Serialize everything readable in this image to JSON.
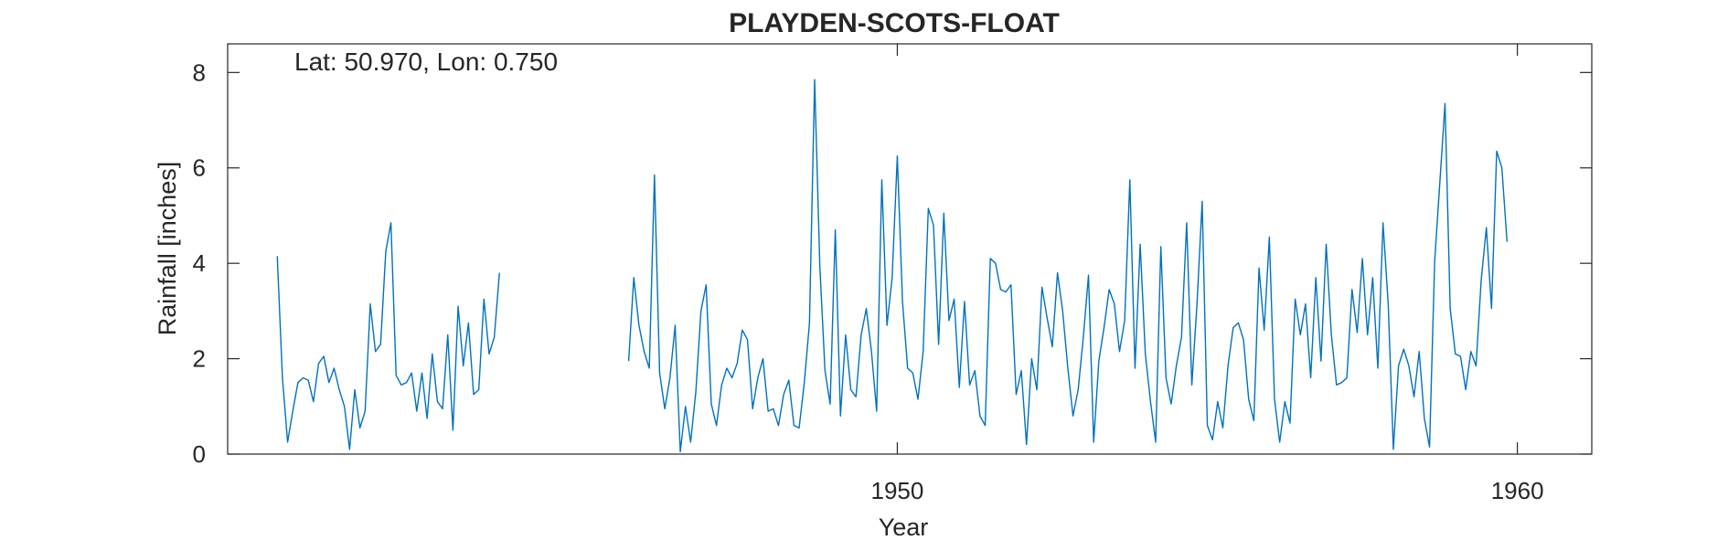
{
  "chart_data": {
    "type": "line",
    "title": "PLAYDEN-SCOTS-FLOAT",
    "annotation": "Lat: 50.970, Lon: 0.750",
    "xlabel": "Year",
    "ylabel": "Rainfall [inches]",
    "xlim": [
      1939.2,
      1961.2
    ],
    "ylim": [
      0,
      8.6
    ],
    "xticks": [
      1950,
      1960
    ],
    "xtick_labels": [
      "1950",
      "1960"
    ],
    "yticks": [
      0,
      2,
      4,
      6,
      8
    ],
    "ytick_labels": [
      "0",
      "2",
      "4",
      "6",
      "8"
    ],
    "grid": false,
    "legend": "none",
    "series": [
      {
        "color": "#0072BD",
        "segments": [
          {
            "x_start": 1940.0,
            "x_step": 0.0833333,
            "values": [
              4.15,
              1.6,
              0.25,
              0.9,
              1.5,
              1.6,
              1.55,
              1.1,
              1.9,
              2.05,
              1.5,
              1.8,
              1.35,
              1.0,
              0.1,
              1.35,
              0.55,
              0.9,
              3.15,
              2.15,
              2.3,
              4.25,
              4.85,
              1.65,
              1.45,
              1.5,
              1.7,
              0.9,
              1.7,
              0.75,
              2.1,
              1.1,
              0.95,
              2.5,
              0.5,
              3.1,
              1.85,
              2.75,
              1.25,
              1.35,
              3.25,
              2.1,
              2.45,
              3.8
            ]
          },
          {
            "x_start": 1945.6667,
            "x_step": 0.0833333,
            "values": [
              1.95,
              3.7,
              2.7,
              2.15,
              1.8,
              5.85,
              1.7,
              0.95,
              1.6,
              2.7,
              0.05,
              1.0,
              0.25,
              1.3,
              3.0,
              3.55,
              1.05,
              0.6,
              1.45,
              1.8,
              1.6,
              1.9,
              2.6,
              2.4,
              0.95,
              1.6,
              2.0,
              0.9,
              0.95,
              0.6,
              1.25,
              1.55,
              0.6,
              0.55,
              1.5,
              2.75,
              7.85,
              3.95,
              1.75,
              1.05,
              4.7,
              0.8,
              2.5,
              1.35,
              1.2,
              2.5,
              3.05,
              2.15,
              0.9,
              5.75,
              2.7,
              3.7,
              6.25,
              3.2,
              1.8,
              1.7,
              1.15,
              2.15,
              5.15,
              4.8,
              2.3,
              5.05,
              2.8,
              3.25,
              1.4,
              3.2,
              1.45,
              1.75,
              0.8,
              0.6,
              4.1,
              4.0,
              3.45,
              3.4,
              3.55,
              1.25,
              1.75,
              0.2,
              2.0,
              1.35,
              3.5,
              2.85,
              2.25,
              3.8,
              3.0,
              1.8,
              0.8,
              1.35,
              2.45,
              3.75,
              0.25,
              1.95,
              2.65,
              3.45,
              3.15,
              2.15,
              2.8,
              5.75,
              1.8,
              4.4,
              2.1,
              1.1,
              0.25,
              4.35,
              1.6,
              1.05,
              1.85,
              2.45,
              4.85,
              1.45,
              3.15,
              5.3,
              0.6,
              0.3,
              1.1,
              0.55,
              1.85,
              2.65,
              2.75,
              2.4,
              1.15,
              0.7,
              3.9,
              2.6,
              4.55,
              1.15,
              0.25,
              1.1,
              0.65,
              3.25,
              2.5,
              3.15,
              1.6,
              3.7,
              1.95,
              4.4,
              2.5,
              1.45,
              1.5,
              1.6,
              3.45,
              2.55,
              4.1,
              2.5,
              3.7,
              1.8,
              4.85,
              3.15,
              0.1,
              1.85,
              2.2,
              1.85,
              1.2,
              2.15,
              0.75,
              0.15,
              4.05,
              5.7,
              7.35,
              3.05,
              2.1,
              2.05,
              1.35,
              2.15,
              1.85,
              3.65,
              4.75,
              3.05,
              6.35,
              6.0,
              4.45
            ]
          }
        ]
      }
    ]
  }
}
